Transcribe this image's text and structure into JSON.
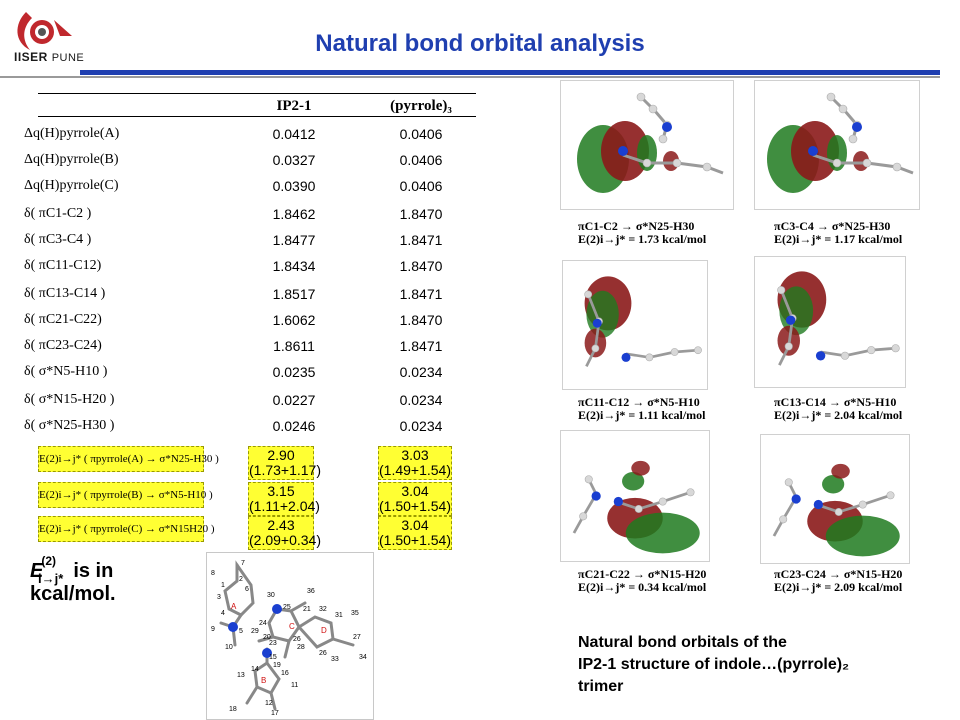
{
  "header": {
    "institute": "IISER",
    "city": "PUNE",
    "title": "Natural bond orbital analysis"
  },
  "table": {
    "col1": "IP2-1",
    "col2": "(pyrrole)₃",
    "rows": [
      {
        "label": "Δq(H)pyrrole(A)",
        "v1": "0.0412",
        "v2": "0.0406"
      },
      {
        "label": "Δq(H)pyrrole(B)",
        "v1": "0.0327",
        "v2": "0.0406"
      },
      {
        "label": "Δq(H)pyrrole(C)",
        "v1": "0.0390",
        "v2": "0.0406"
      },
      {
        "label": "δ( πC1-C2 )",
        "v1": "1.8462",
        "v2": "1.8470"
      },
      {
        "label": "δ( πC3-C4 )",
        "v1": "1.8477",
        "v2": "1.8471"
      },
      {
        "label": "δ( πC11-C12)",
        "v1": "1.8434",
        "v2": "1.8470"
      },
      {
        "label": "δ( πC13-C14 )",
        "v1": "1.8517",
        "v2": "1.8471"
      },
      {
        "label": "δ( πC21-C22)",
        "v1": "1.6062",
        "v2": "1.8470"
      },
      {
        "label": "δ( πC23-C24)",
        "v1": "1.8611",
        "v2": "1.8471"
      },
      {
        "label": "δ( σ*N5-H10 )",
        "v1": "0.0235",
        "v2": "0.0234"
      },
      {
        "label": "δ( σ*N15-H20 )",
        "v1": "0.0227",
        "v2": "0.0234"
      },
      {
        "label": "δ( σ*N25-H30 )",
        "v1": "0.0246",
        "v2": "0.0234"
      }
    ],
    "e2rows": [
      {
        "label": "E(2)i→j* ( πpyrrole(A) → σ*N25-H30 )",
        "v1a": "2.90",
        "v1b": "(1.73+1.17)",
        "v2a": "3.03",
        "v2b": "(1.49+1.54)"
      },
      {
        "label": "E(2)i→j* ( πpyrrole(B) → σ*N5-H10 )",
        "v1a": "3.15",
        "v1b": "(1.11+2.04)",
        "v2a": "3.04",
        "v2b": "(1.50+1.54)"
      },
      {
        "label": "E(2)i→j* ( πpyrrole(C) → σ*N15H20 )",
        "v1a": "2.43",
        "v1b": "(2.09+0.34)",
        "v2a": "3.04",
        "v2b": "(1.50+1.54)"
      }
    ]
  },
  "note": {
    "line1": "E(2)i→j*  is in",
    "line2": "kcal/mol."
  },
  "orbitals": [
    {
      "l1": "πC1-C2 → σ*N25-H30",
      "l2": "E(2)i→j* = 1.73 kcal/mol"
    },
    {
      "l1": "πC3-C4 → σ*N25-H30",
      "l2": "E(2)i→j* = 1.17 kcal/mol"
    },
    {
      "l1": "πC11-C12 → σ*N5-H10",
      "l2": "E(2)i→j* = 1.11 kcal/mol"
    },
    {
      "l1": "πC13-C14 → σ*N5-H10",
      "l2": "E(2)i→j* = 2.04 kcal/mol"
    },
    {
      "l1": "πC21-C22 → σ*N15-H20",
      "l2": "E(2)i→j* = 0.34 kcal/mol"
    },
    {
      "l1": "πC23-C24 → σ*N15-H20",
      "l2": "E(2)i→j* = 2.09 kcal/mol"
    }
  ],
  "molecule_labels": [
    "7",
    "8",
    "2",
    "1",
    "3",
    "6",
    "4",
    "A",
    "9",
    "5",
    "10",
    "30",
    "36",
    "25",
    "21",
    "32",
    "31",
    "35",
    "24",
    "C",
    "29",
    "26",
    "D",
    "22",
    "23",
    "20",
    "28",
    "34",
    "27",
    "26",
    "33",
    "15",
    "14",
    "19",
    "13",
    "B",
    "11",
    "16",
    "12",
    "18",
    "17"
  ],
  "caption": {
    "line1": "Natural bond orbitals of the",
    "line2": "IP2-1 structure of indole…(pyrrole)₂",
    "line3": "trimer"
  },
  "colors": {
    "title": "#1f3fb0",
    "highlight": "#ffff33",
    "orbital_red": "#8b1a1a",
    "orbital_green": "#1f7a1f"
  }
}
